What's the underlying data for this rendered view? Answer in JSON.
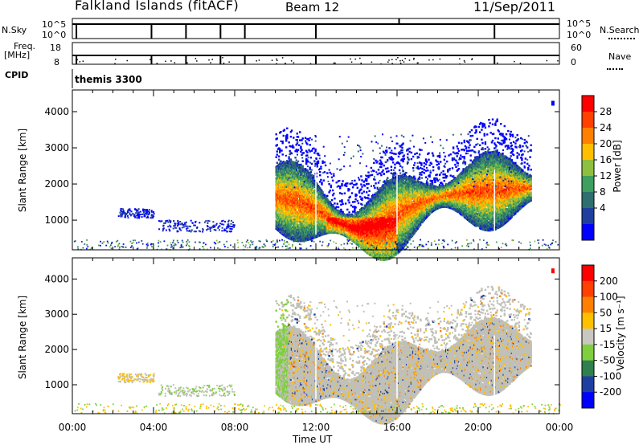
{
  "header": {
    "station": "Falkland Islands (fitACF)",
    "beam": "Beam 12",
    "date": "11/Sep/2011"
  },
  "summary_panels": {
    "nsky_label": "N.Sky",
    "nsky_ticks": [
      "10^5",
      "10^0"
    ],
    "nsearch_label": "N.Search",
    "nsearch_ticks": [
      "10^5",
      "10^0"
    ],
    "freq_label_line1": "Freq.",
    "freq_label_line2": "[MHz]",
    "freq_ticks": [
      "18",
      "8"
    ],
    "nave_label": "Nave",
    "nave_ticks": [
      "60",
      "0"
    ],
    "cpid_label": "CPID",
    "cpid_value": "themis 3300"
  },
  "colors": {
    "power_scale": [
      "#0000ff",
      "#1f3f9f",
      "#2f6f6f",
      "#3f9f5f",
      "#8fbf3f",
      "#ffbf00",
      "#ff8000",
      "#ff4000",
      "#ff0000"
    ],
    "velocity_scale": [
      "#0000ff",
      "#1f3fa0",
      "#2f7f4f",
      "#7fcf3f",
      "#c8c8c0",
      "#ffc000",
      "#ff8000",
      "#ff4000",
      "#ff0000"
    ],
    "ground_scatter": "#c0c0b8"
  },
  "chart_data": [
    {
      "type": "heatmap",
      "panel": "power",
      "ylabel": "Slant Range [km]",
      "ylim": [
        180,
        4600
      ],
      "y_ticks": [
        "4000",
        "3000",
        "2000",
        "1000"
      ],
      "y_tick_values": [
        4000,
        3000,
        2000,
        1000
      ],
      "x_ticks": [
        "00:00",
        "04:00",
        "08:00",
        "12:00",
        "16:00",
        "20:00",
        "00:00"
      ],
      "xlim_hours": [
        0,
        24
      ],
      "colorbar_label": "Power [dB]",
      "colorbar_ticks": [
        "28",
        "24",
        "20",
        "16",
        "12",
        "8",
        "4"
      ],
      "colorbar_range": [
        0,
        30
      ],
      "scatter_regions": [
        {
          "t_start": 10.0,
          "t_end": 22.6,
          "r_low": 500,
          "r_high": 2700,
          "level": "medium"
        },
        {
          "t_start": 12.5,
          "t_end": 16.0,
          "r_low": 450,
          "r_high": 1200,
          "level": "high"
        },
        {
          "t_start": 2.2,
          "t_end": 3.9,
          "r_low": 1050,
          "r_high": 1350,
          "level": "low"
        },
        {
          "t_start": 4.2,
          "t_end": 7.8,
          "r_low": 700,
          "r_high": 1000,
          "level": "low"
        }
      ]
    },
    {
      "type": "heatmap",
      "panel": "velocity",
      "ylabel": "Slant Range [km]",
      "ylim": [
        180,
        4600
      ],
      "y_ticks": [
        "4000",
        "3000",
        "2000",
        "1000"
      ],
      "y_tick_values": [
        4000,
        3000,
        2000,
        1000
      ],
      "x_ticks": [
        "00:00",
        "04:00",
        "08:00",
        "12:00",
        "16:00",
        "20:00",
        "00:00"
      ],
      "xlim_hours": [
        0,
        24
      ],
      "xlabel": "Time UT",
      "colorbar_label": "Velocity [m s⁻¹]",
      "colorbar_ticks": [
        "200",
        "100",
        "50",
        "15",
        "-15",
        "-50",
        "-100",
        "-200"
      ],
      "colorbar_range": [
        -250,
        250
      ]
    }
  ]
}
